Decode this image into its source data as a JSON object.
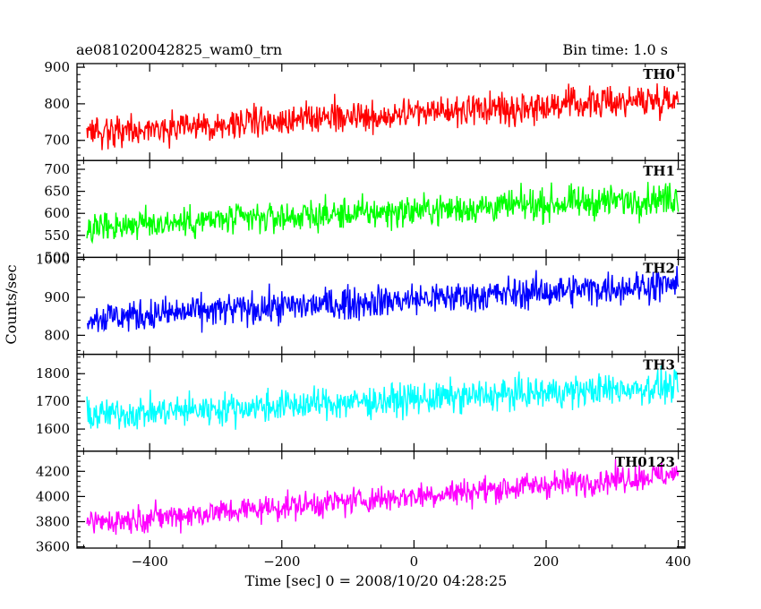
{
  "chart_data": {
    "type": "line",
    "title": "ae081020042825_wam0_trn",
    "subtitle": "Bin time: 1.0 s",
    "xlabel": "Time [sec] 0 = 2008/10/20 04:28:25",
    "ylabel": "Counts/sec",
    "xlim": [
      -510,
      410
    ],
    "x_ticks": [
      -400,
      -200,
      0,
      200,
      400
    ],
    "x_tick_labels": [
      "−400",
      "−200",
      "0",
      "200",
      "400"
    ],
    "x_range": [
      -495,
      400
    ],
    "bin_time": 1.0,
    "panels": [
      {
        "name": "TH0",
        "color": "#ff0000",
        "ylim": [
          645,
          910
        ],
        "y_ticks": [
          700,
          800,
          900
        ],
        "y_tick_labels": [
          "700",
          "800",
          "900"
        ],
        "start": 725,
        "end": 815,
        "amplitude": 30
      },
      {
        "name": "TH1",
        "color": "#00ff00",
        "ylim": [
          500,
          720
        ],
        "y_ticks": [
          500,
          550,
          600,
          650,
          700
        ],
        "y_tick_labels": [
          "500",
          "550",
          "600",
          "650",
          "700"
        ],
        "start": 570,
        "end": 635,
        "amplitude": 25
      },
      {
        "name": "TH2",
        "color": "#0000ff",
        "ylim": [
          750,
          1005
        ],
        "y_ticks": [
          800,
          900,
          1000
        ],
        "y_tick_labels": [
          "800",
          "900",
          "1000"
        ],
        "start": 845,
        "end": 935,
        "amplitude": 30
      },
      {
        "name": "TH3",
        "color": "#00ffff",
        "ylim": [
          1520,
          1870
        ],
        "y_ticks": [
          1600,
          1700,
          1800
        ],
        "y_tick_labels": [
          "1600",
          "1700",
          "1800"
        ],
        "start": 1650,
        "end": 1755,
        "amplitude": 40
      },
      {
        "name": "TH0123",
        "color": "#ff00ff",
        "ylim": [
          3590,
          4360
        ],
        "y_ticks": [
          3600,
          3800,
          4000,
          4200
        ],
        "y_tick_labels": [
          "3600",
          "3800",
          "4000",
          "4200"
        ],
        "start": 3790,
        "end": 4180,
        "amplitude": 75
      }
    ]
  }
}
